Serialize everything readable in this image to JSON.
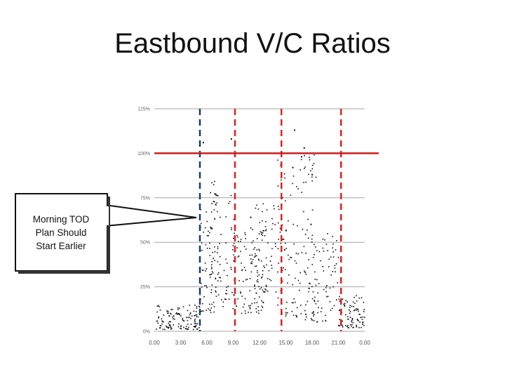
{
  "slide": {
    "title": "Eastbound V/C Ratios"
  },
  "callout": {
    "lines": [
      "Morning TOD",
      "Plan Should",
      "Start Earlier"
    ]
  },
  "chart_data": {
    "type": "scatter",
    "title": "",
    "xlabel": "",
    "ylabel": "",
    "x_ticks": [
      "0.00",
      "3.00",
      "6.00",
      "9.00",
      "12.00",
      "15.00",
      "18.00",
      "21.00",
      "0.00"
    ],
    "y_ticks": [
      "0%",
      "25%",
      "50%",
      "75%",
      "100%",
      "125%"
    ],
    "y_values": [
      0,
      25,
      50,
      75,
      100,
      125
    ],
    "x_range_hours": [
      0,
      24
    ],
    "y_range_percent": [
      0,
      125
    ],
    "grid": "horizontal",
    "reference_lines": [
      {
        "axis": "x",
        "value": 5.2,
        "style": "dashed",
        "color": "#1f3864"
      },
      {
        "axis": "x",
        "value": 9.2,
        "style": "dashed",
        "color": "#e02020"
      },
      {
        "axis": "x",
        "value": 14.5,
        "style": "dashed",
        "color": "#e02020"
      },
      {
        "axis": "x",
        "value": 21.3,
        "style": "dashed",
        "color": "#e02020"
      },
      {
        "axis": "y",
        "value": 100,
        "style": "solid",
        "color": "#cc1f1f"
      }
    ],
    "point_color": "#111111",
    "point_clusters": [
      {
        "x_range": [
          0.2,
          5.2
        ],
        "y_range": [
          1,
          15
        ],
        "count": 130
      },
      {
        "x_range": [
          5.2,
          7.0
        ],
        "y_range": [
          10,
          85
        ],
        "count": 60
      },
      {
        "x_range": [
          6.3,
          9.2
        ],
        "y_range": [
          12,
          80
        ],
        "count": 90
      },
      {
        "x_range": [
          9.2,
          12.5
        ],
        "y_range": [
          10,
          60
        ],
        "count": 90
      },
      {
        "x_range": [
          11.0,
          15.0
        ],
        "y_range": [
          22,
          72
        ],
        "count": 90
      },
      {
        "x_range": [
          14.0,
          18.5
        ],
        "y_range": [
          8,
          100
        ],
        "count": 110
      },
      {
        "x_range": [
          17.0,
          21.0
        ],
        "y_range": [
          5,
          55
        ],
        "count": 90
      },
      {
        "x_range": [
          21.0,
          24.0
        ],
        "y_range": [
          2,
          20
        ],
        "count": 90
      }
    ],
    "outlier_points": [
      {
        "x": 5.6,
        "y": 106
      },
      {
        "x": 8.8,
        "y": 108
      },
      {
        "x": 16.0,
        "y": 113
      },
      {
        "x": 17.1,
        "y": 103
      },
      {
        "x": 16.8,
        "y": 98
      },
      {
        "x": 11.0,
        "y": 64
      },
      {
        "x": 7.0,
        "y": 77
      },
      {
        "x": 18.0,
        "y": 88
      },
      {
        "x": 15.8,
        "y": 92
      }
    ]
  }
}
